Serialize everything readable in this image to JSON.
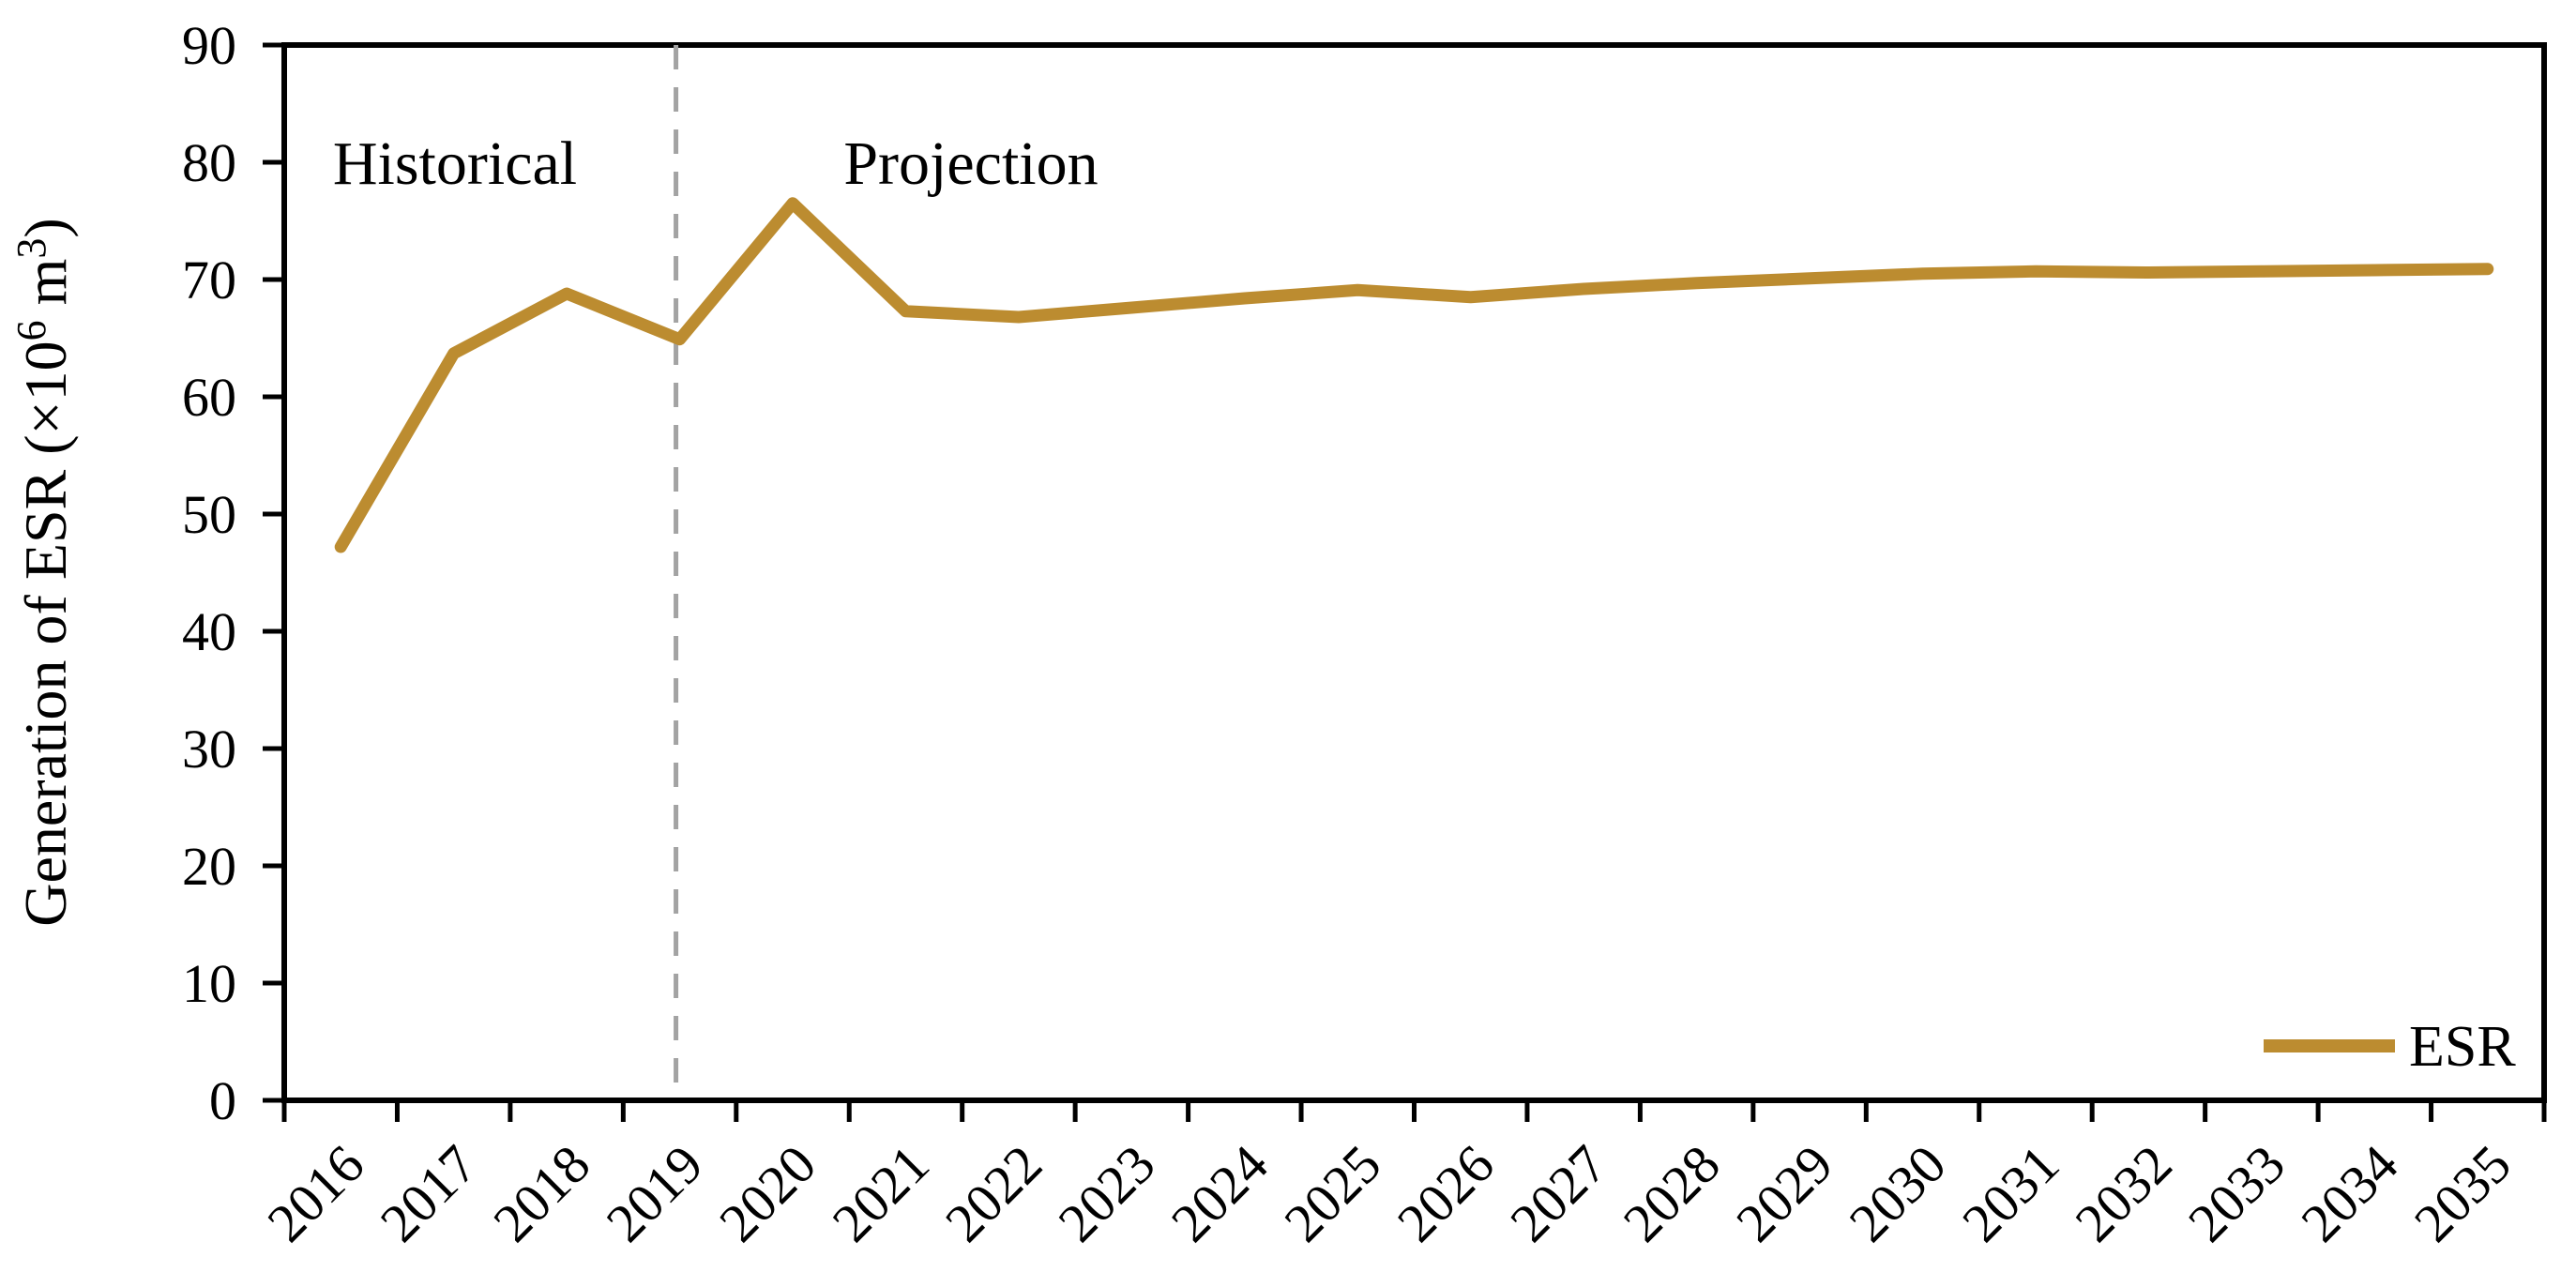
{
  "annotations": {
    "historical": "Historical",
    "projection": "Projection"
  },
  "legend": {
    "label": "ESR"
  },
  "colors": {
    "background": "#FFFFFF",
    "axis": "#000000",
    "text": "#000000",
    "series": "#BC8C30",
    "divider": "#A3A3A3"
  },
  "chart_data": {
    "type": "line",
    "title": "",
    "xlabel": "",
    "ylabel": "Generation of ESR (×10⁶ m³)",
    "ylabel_parts": [
      {
        "text": "Generation of ESR (×10"
      },
      {
        "text": "6",
        "superscript": true
      },
      {
        "text": " m"
      },
      {
        "text": "3",
        "superscript": true
      },
      {
        "text": ")"
      }
    ],
    "categories": [
      "2016",
      "2017",
      "2018",
      "2019",
      "2020",
      "2021",
      "2022",
      "2023",
      "2024",
      "2025",
      "2026",
      "2027",
      "2028",
      "2029",
      "2030",
      "2031",
      "2032",
      "2033",
      "2034",
      "2035"
    ],
    "series": [
      {
        "name": "ESR",
        "color": "#BC8C30",
        "values": [
          47.2,
          63.7,
          68.8,
          64.9,
          76.5,
          67.3,
          66.8,
          67.6,
          68.4,
          69.1,
          68.5,
          69.2,
          69.7,
          70.1,
          70.5,
          70.7,
          70.6,
          70.7,
          70.8,
          70.9
        ]
      }
    ],
    "ylim": [
      0,
      90
    ],
    "yticks": [
      0,
      10,
      20,
      30,
      40,
      50,
      60,
      70,
      80,
      90
    ],
    "divider": {
      "at_category": "2019",
      "style": "dashed",
      "color": "#A3A3A3"
    },
    "legend_position": "inside-bottom-right",
    "grid": false,
    "x_tick_label_rotation": -45
  }
}
